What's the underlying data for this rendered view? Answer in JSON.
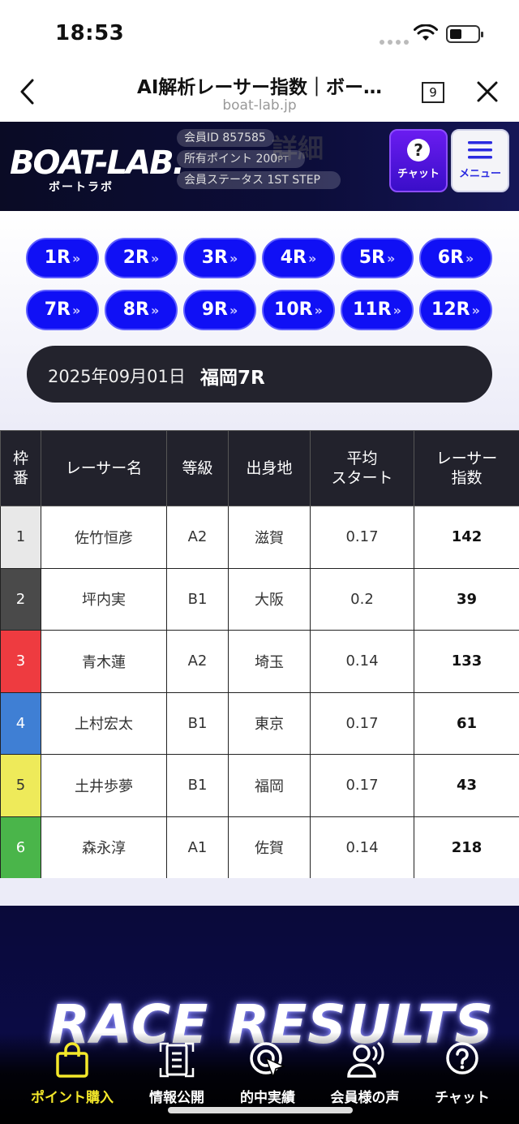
{
  "status_bar": {
    "time": "18:53"
  },
  "browser": {
    "title": "AI解析レーサー指数｜ボー…",
    "url": "boat-lab.jp",
    "tab_count": "9"
  },
  "header": {
    "logo": "BOAT-LAB.",
    "logo_sub": "ボートラボ",
    "ghost_title": "詳細",
    "member_id_label": "会員ID",
    "member_id": "857585",
    "points_label": "所有ポイント",
    "points": "200",
    "points_unit": "PT",
    "status_label": "会員ステータス",
    "status_value": "1ST STEP",
    "chat_button": "チャット",
    "menu_button": "メニュー"
  },
  "races": {
    "items": [
      "1R",
      "2R",
      "3R",
      "4R",
      "5R",
      "6R",
      "7R",
      "8R",
      "9R",
      "10R",
      "11R",
      "12R"
    ],
    "arrow": "»"
  },
  "race_info": {
    "date": "2025年09月01日",
    "place": "福岡7R"
  },
  "table": {
    "headers": [
      "枠\n番",
      "レーサー名",
      "等級",
      "出身地",
      "平均\nスタート",
      "レーサー\n指数"
    ],
    "rows": [
      {
        "waku": "1",
        "name": "佐竹恒彦",
        "grade": "A2",
        "origin": "滋賀",
        "avg_start": "0.17",
        "index": "142"
      },
      {
        "waku": "2",
        "name": "坪内実",
        "grade": "B1",
        "origin": "大阪",
        "avg_start": "0.2",
        "index": "39"
      },
      {
        "waku": "3",
        "name": "青木蓮",
        "grade": "A2",
        "origin": "埼玉",
        "avg_start": "0.14",
        "index": "133"
      },
      {
        "waku": "4",
        "name": "上村宏太",
        "grade": "B1",
        "origin": "東京",
        "avg_start": "0.17",
        "index": "61"
      },
      {
        "waku": "5",
        "name": "土井歩夢",
        "grade": "B1",
        "origin": "福岡",
        "avg_start": "0.17",
        "index": "43"
      },
      {
        "waku": "6",
        "name": "森永淳",
        "grade": "A1",
        "origin": "佐賀",
        "avg_start": "0.14",
        "index": "218"
      }
    ],
    "waku_colors": [
      "#e8e8e8",
      "#4a4a4a",
      "#ee3b40",
      "#3f7fd4",
      "#eeea5a",
      "#4ab54a"
    ],
    "waku_text_colors": [
      "#333333",
      "#ffffff",
      "#ffffff",
      "#ffffff",
      "#333333",
      "#ffffff"
    ]
  },
  "results_banner": {
    "title": "RACE RESULTS"
  },
  "tabbar": {
    "items": [
      {
        "label": "ポイント購入",
        "icon": "shopping-bag-icon",
        "active": true
      },
      {
        "label": "情報公開",
        "icon": "document-icon",
        "active": false
      },
      {
        "label": "的中実績",
        "icon": "target-cursor-icon",
        "active": false
      },
      {
        "label": "会員様の声",
        "icon": "user-voice-icon",
        "active": false
      },
      {
        "label": "チャット",
        "icon": "question-chat-icon",
        "active": false
      }
    ]
  },
  "colors": {
    "race_button": "#1010f5",
    "accent_active": "#f4e82a",
    "header_bg": "#0c0d3a"
  }
}
